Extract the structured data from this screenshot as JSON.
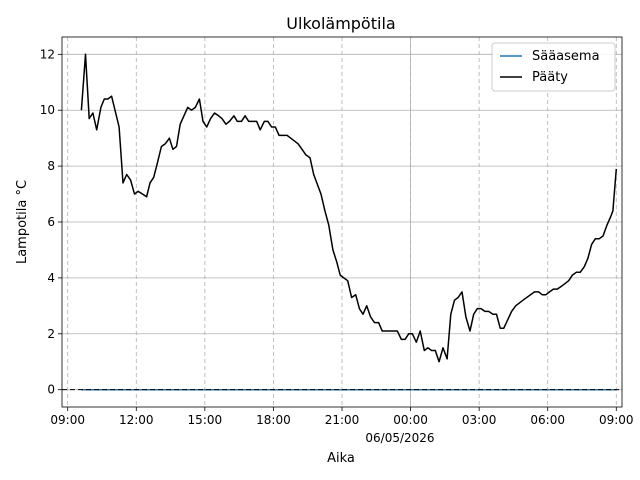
{
  "chart_data": {
    "type": "line",
    "title": "Ulkolämpötila",
    "xlabel": "Aika",
    "ylabel": "Lampotila °C",
    "date_label": "06/05/2026",
    "xlim": [
      8.75,
      33.25
    ],
    "ylim": [
      -0.62,
      12.62
    ],
    "x_ticks": [
      {
        "x": 9,
        "label": "09:00"
      },
      {
        "x": 12,
        "label": "12:00"
      },
      {
        "x": 15,
        "label": "15:00"
      },
      {
        "x": 18,
        "label": "18:00"
      },
      {
        "x": 21,
        "label": "21:00"
      },
      {
        "x": 24,
        "label": "00:00"
      },
      {
        "x": 27,
        "label": "03:00"
      },
      {
        "x": 30,
        "label": "06:00"
      },
      {
        "x": 33,
        "label": "09:00"
      }
    ],
    "y_ticks": [
      {
        "y": 0,
        "label": "0"
      },
      {
        "y": 2,
        "label": "2"
      },
      {
        "y": 4,
        "label": "4"
      },
      {
        "y": 6,
        "label": "6"
      },
      {
        "y": 8,
        "label": "8"
      },
      {
        "y": 10,
        "label": "10"
      },
      {
        "y": 12,
        "label": "12"
      }
    ],
    "grid": true,
    "legend_position": "top-right",
    "reference_line": {
      "y": 0,
      "color": "#000000",
      "style": "dashed"
    },
    "series": [
      {
        "name": "Sääasema",
        "color": "#1f77b4",
        "points": [
          [
            9.6,
            0
          ],
          [
            33.0,
            0
          ]
        ]
      },
      {
        "name": "Pääty",
        "color": "#000000",
        "points": [
          [
            9.6,
            10.0
          ],
          [
            9.78,
            12.0
          ],
          [
            9.94,
            9.7
          ],
          [
            10.1,
            9.9
          ],
          [
            10.27,
            9.3
          ],
          [
            10.45,
            10.1
          ],
          [
            10.6,
            10.4
          ],
          [
            10.76,
            10.4
          ],
          [
            10.92,
            10.5
          ],
          [
            11.25,
            9.4
          ],
          [
            11.42,
            7.4
          ],
          [
            11.58,
            7.7
          ],
          [
            11.75,
            7.5
          ],
          [
            11.92,
            7.0
          ],
          [
            12.08,
            7.1
          ],
          [
            12.45,
            6.9
          ],
          [
            12.6,
            7.4
          ],
          [
            12.76,
            7.6
          ],
          [
            12.92,
            8.1
          ],
          [
            13.1,
            8.7
          ],
          [
            13.27,
            8.8
          ],
          [
            13.45,
            9.0
          ],
          [
            13.6,
            8.6
          ],
          [
            13.76,
            8.7
          ],
          [
            13.92,
            9.5
          ],
          [
            14.25,
            10.1
          ],
          [
            14.42,
            10.0
          ],
          [
            14.58,
            10.1
          ],
          [
            14.76,
            10.4
          ],
          [
            14.92,
            9.6
          ],
          [
            15.08,
            9.4
          ],
          [
            15.25,
            9.7
          ],
          [
            15.42,
            9.9
          ],
          [
            15.6,
            9.8
          ],
          [
            15.75,
            9.7
          ],
          [
            15.92,
            9.5
          ],
          [
            16.08,
            9.6
          ],
          [
            16.27,
            9.8
          ],
          [
            16.42,
            9.6
          ],
          [
            16.6,
            9.6
          ],
          [
            16.76,
            9.8
          ],
          [
            16.92,
            9.6
          ],
          [
            17.08,
            9.6
          ],
          [
            17.27,
            9.6
          ],
          [
            17.42,
            9.3
          ],
          [
            17.6,
            9.6
          ],
          [
            17.76,
            9.6
          ],
          [
            17.92,
            9.4
          ],
          [
            18.08,
            9.4
          ],
          [
            18.25,
            9.1
          ],
          [
            18.6,
            9.1
          ],
          [
            18.76,
            9.0
          ],
          [
            19.08,
            8.8
          ],
          [
            19.25,
            8.6
          ],
          [
            19.42,
            8.4
          ],
          [
            19.6,
            8.3
          ],
          [
            19.76,
            7.7
          ],
          [
            20.08,
            7.0
          ],
          [
            20.25,
            6.4
          ],
          [
            20.42,
            5.9
          ],
          [
            20.6,
            5.0
          ],
          [
            20.76,
            4.6
          ],
          [
            20.92,
            4.1
          ],
          [
            21.08,
            4.0
          ],
          [
            21.25,
            3.9
          ],
          [
            21.42,
            3.3
          ],
          [
            21.6,
            3.4
          ],
          [
            21.76,
            2.9
          ],
          [
            21.92,
            2.7
          ],
          [
            22.08,
            3.0
          ],
          [
            22.25,
            2.6
          ],
          [
            22.42,
            2.4
          ],
          [
            22.6,
            2.4
          ],
          [
            22.76,
            2.1
          ],
          [
            22.92,
            2.1
          ],
          [
            23.42,
            2.1
          ],
          [
            23.6,
            1.8
          ],
          [
            23.76,
            1.8
          ],
          [
            23.92,
            2.0
          ],
          [
            24.08,
            2.0
          ],
          [
            24.25,
            1.7
          ],
          [
            24.42,
            2.1
          ],
          [
            24.6,
            1.4
          ],
          [
            24.76,
            1.5
          ],
          [
            24.92,
            1.4
          ],
          [
            25.08,
            1.4
          ],
          [
            25.25,
            1.0
          ],
          [
            25.42,
            1.5
          ],
          [
            25.6,
            1.1
          ],
          [
            25.76,
            2.7
          ],
          [
            25.92,
            3.2
          ],
          [
            26.08,
            3.3
          ],
          [
            26.25,
            3.5
          ],
          [
            26.42,
            2.6
          ],
          [
            26.6,
            2.1
          ],
          [
            26.76,
            2.7
          ],
          [
            26.92,
            2.9
          ],
          [
            27.08,
            2.9
          ],
          [
            27.25,
            2.8
          ],
          [
            27.42,
            2.8
          ],
          [
            27.6,
            2.7
          ],
          [
            27.76,
            2.7
          ],
          [
            27.92,
            2.2
          ],
          [
            28.08,
            2.2
          ],
          [
            28.42,
            2.8
          ],
          [
            28.6,
            3.0
          ],
          [
            28.92,
            3.2
          ],
          [
            29.42,
            3.5
          ],
          [
            29.6,
            3.5
          ],
          [
            29.76,
            3.4
          ],
          [
            29.92,
            3.4
          ],
          [
            30.08,
            3.5
          ],
          [
            30.25,
            3.6
          ],
          [
            30.42,
            3.6
          ],
          [
            30.6,
            3.7
          ],
          [
            30.92,
            3.9
          ],
          [
            31.08,
            4.1
          ],
          [
            31.25,
            4.2
          ],
          [
            31.42,
            4.2
          ],
          [
            31.6,
            4.4
          ],
          [
            31.76,
            4.7
          ],
          [
            31.92,
            5.2
          ],
          [
            32.08,
            5.4
          ],
          [
            32.25,
            5.4
          ],
          [
            32.42,
            5.5
          ],
          [
            32.6,
            5.9
          ],
          [
            32.76,
            6.2
          ],
          [
            32.85,
            6.4
          ],
          [
            33.0,
            7.9
          ]
        ]
      }
    ]
  }
}
